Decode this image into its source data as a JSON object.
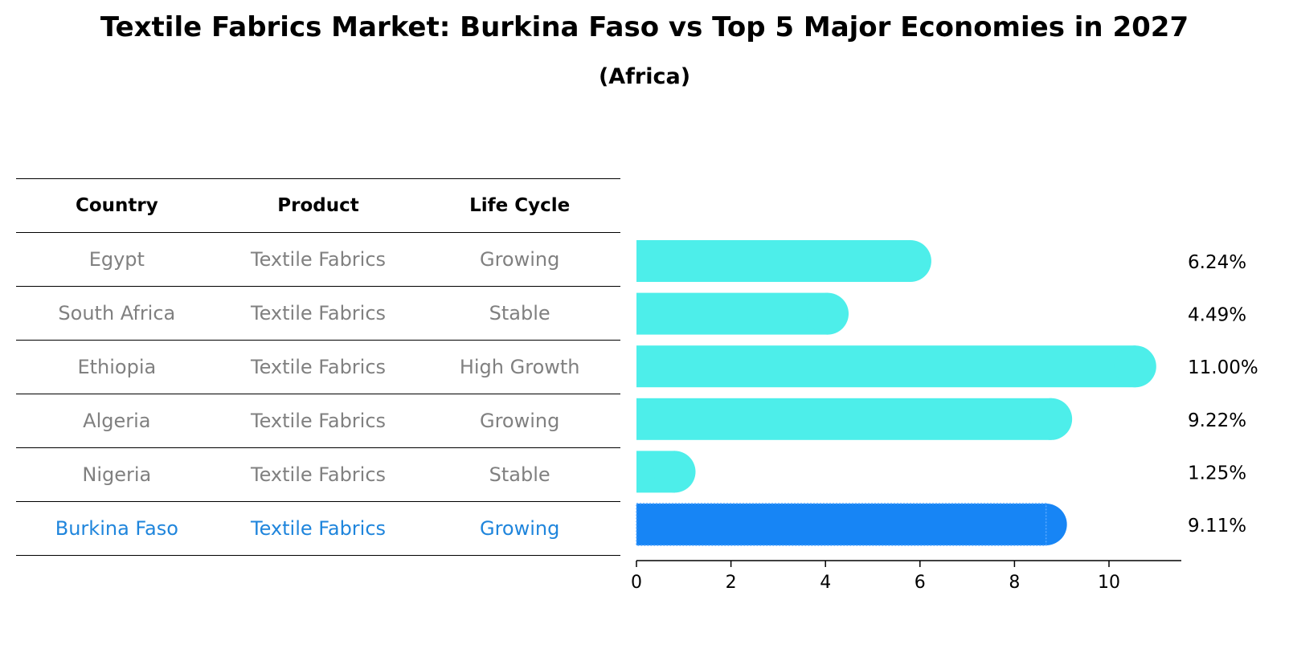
{
  "title": "Textile Fabrics Market: Burkina Faso vs Top 5 Major Economies in 2027",
  "subtitle": "(Africa)",
  "table": {
    "headers": [
      "Country",
      "Product",
      "Life Cycle"
    ],
    "rows": [
      [
        "Egypt",
        "Textile Fabrics",
        "Growing"
      ],
      [
        "South Africa",
        "Textile Fabrics",
        "Stable"
      ],
      [
        "Ethiopia",
        "Textile Fabrics",
        "High Growth"
      ],
      [
        "Algeria",
        "Textile Fabrics",
        "Growing"
      ],
      [
        "Nigeria",
        "Textile Fabrics",
        "Stable"
      ],
      [
        "Burkina Faso",
        "Textile Fabrics",
        "Growing"
      ]
    ]
  },
  "colors": {
    "bar": "#4deeea",
    "highlight_bar": "#1785f5",
    "highlight_text": "#1f85dc",
    "row_text": "#808080"
  },
  "chart_data": {
    "type": "bar",
    "orientation": "horizontal",
    "categories": [
      "Egypt",
      "South Africa",
      "Ethiopia",
      "Algeria",
      "Nigeria",
      "Burkina Faso"
    ],
    "values": [
      6.24,
      4.49,
      11.0,
      9.22,
      1.25,
      9.11
    ],
    "value_labels": [
      "6.24%",
      "4.49%",
      "11.00%",
      "9.22%",
      "1.25%",
      "9.11%"
    ],
    "highlight": "Burkina Faso",
    "xlim": [
      0,
      11.5
    ],
    "xticks": [
      0,
      2,
      4,
      6,
      8,
      10
    ],
    "grid": false
  }
}
